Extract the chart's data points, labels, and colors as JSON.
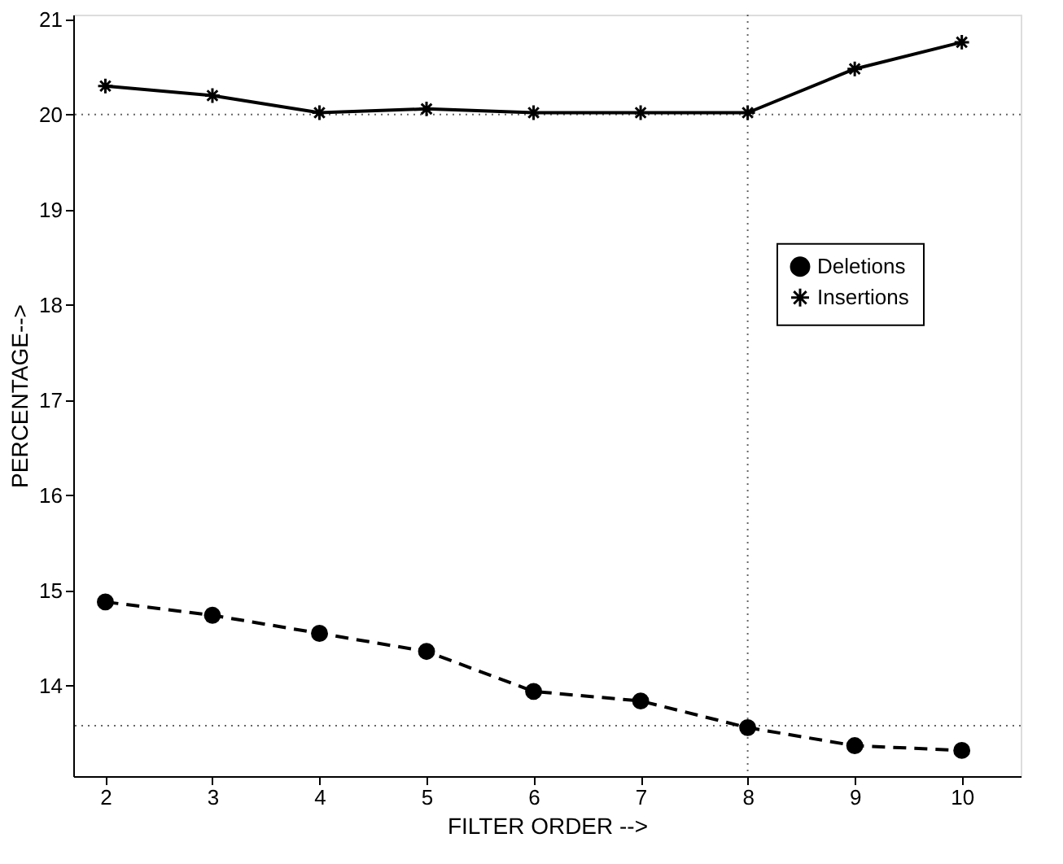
{
  "chart_data": {
    "type": "line",
    "xlabel": "FILTER ORDER -->",
    "ylabel": "PERCENTAGE-->",
    "x": [
      2,
      3,
      4,
      5,
      6,
      7,
      8,
      9,
      10
    ],
    "series": [
      {
        "name": "Deletions",
        "color": "#000000",
        "marker": "circle",
        "line_style": "dashed",
        "values": [
          14.88,
          14.74,
          14.55,
          14.36,
          13.94,
          13.84,
          13.56,
          13.37,
          13.32
        ]
      },
      {
        "name": "Insertions",
        "color": "#000000",
        "marker": "cross",
        "line_style": "solid",
        "values": [
          20.3,
          20.2,
          20.02,
          20.06,
          20.02,
          20.02,
          20.02,
          20.48,
          20.76
        ]
      }
    ],
    "xlim": [
      1.7,
      10.55
    ],
    "ylim": [
      13.05,
      21.05
    ],
    "xticks": [
      2,
      3,
      4,
      5,
      6,
      7,
      8,
      9,
      10
    ],
    "yticks": [
      14,
      15,
      16,
      17,
      18,
      19,
      20,
      21
    ],
    "ref_lines": [
      {
        "axis": "y",
        "value": 20,
        "line_style": "dotted",
        "color": "#000000"
      },
      {
        "axis": "y",
        "value": 13.58,
        "line_style": "dotted",
        "color": "#000000"
      },
      {
        "axis": "x",
        "value": 8,
        "line_style": "dotted",
        "color": "#000000"
      }
    ],
    "grid": false,
    "legend": "right"
  }
}
